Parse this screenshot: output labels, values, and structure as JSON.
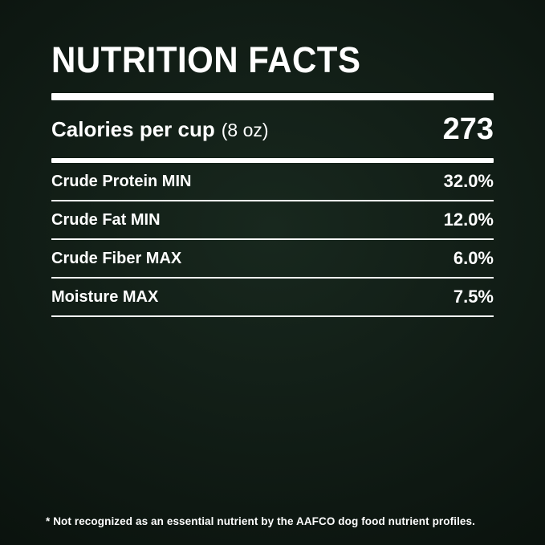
{
  "colors": {
    "background_center": "#18281e",
    "background_edge": "#040705",
    "text": "#ffffff"
  },
  "header": {
    "title": "NUTRITION FACTS"
  },
  "calories": {
    "label": "Calories per cup",
    "unit": "(8 oz)",
    "value": "273"
  },
  "nutrients": [
    {
      "label": "Crude Protein MIN",
      "value": "32.0%"
    },
    {
      "label": "Crude Fat MIN",
      "value": "12.0%"
    },
    {
      "label": "Crude Fiber MAX",
      "value": "6.0%"
    },
    {
      "label": "Moisture MAX",
      "value": "7.5%"
    }
  ],
  "footnote": "* Not recognized as an essential nutrient by the AAFCO dog food nutrient profiles."
}
